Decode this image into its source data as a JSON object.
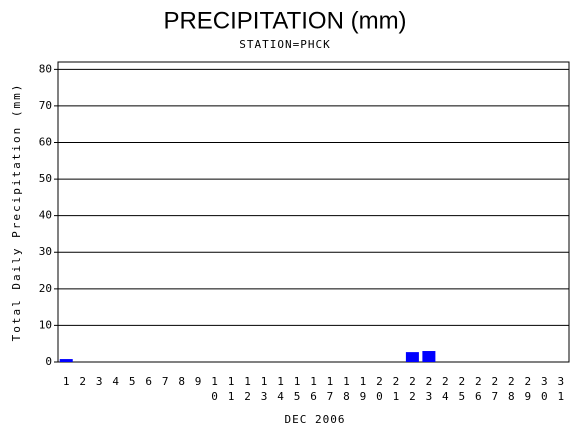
{
  "chart_data": {
    "type": "bar",
    "title": "PRECIPITATION (mm)",
    "subtitle": "STATION=PHCK",
    "x_label": "DEC 2006",
    "y_label": "Total Daily Precipitation (mm)",
    "categories": [
      "1",
      "2",
      "3",
      "4",
      "5",
      "6",
      "7",
      "8",
      "9",
      "10",
      "11",
      "12",
      "13",
      "14",
      "15",
      "16",
      "17",
      "18",
      "19",
      "20",
      "21",
      "22",
      "23",
      "24",
      "25",
      "26",
      "27",
      "28",
      "29",
      "30",
      "31"
    ],
    "values": [
      0.8,
      0,
      0,
      0,
      0,
      0,
      0,
      0,
      0,
      0,
      0,
      0,
      0,
      0,
      0,
      0,
      0,
      0,
      0,
      0,
      0,
      2.7,
      3.0,
      0,
      0,
      0,
      0,
      0,
      0,
      0,
      0
    ],
    "color": "#0000ff",
    "ylim": [
      0,
      82
    ],
    "yticks": [
      0,
      10,
      20,
      30,
      40,
      50,
      60,
      70,
      80
    ],
    "grid": true
  }
}
